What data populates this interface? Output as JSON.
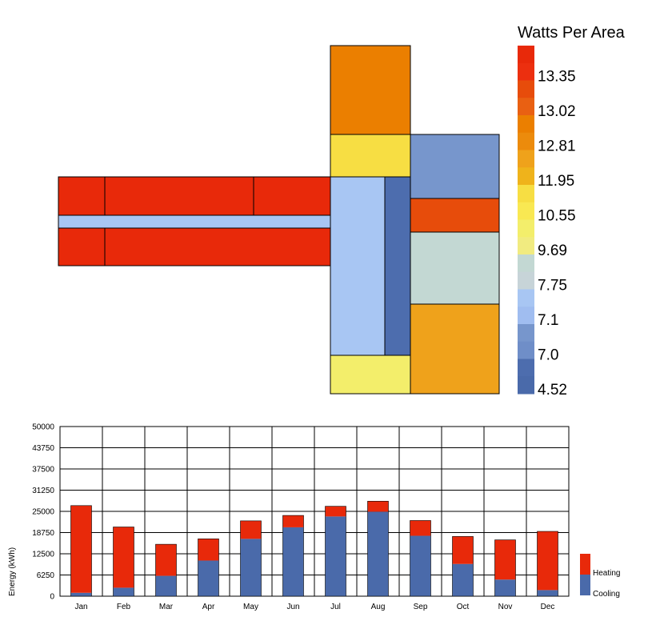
{
  "legend_map": {
    "title": "Watts Per Area",
    "bins": [
      {
        "label": "",
        "color": "#e8290a"
      },
      {
        "label": "13.35",
        "color": "#ec2f0f"
      },
      {
        "label": "",
        "color": "#e74c0b"
      },
      {
        "label": "13.02",
        "color": "#e96012"
      },
      {
        "label": "",
        "color": "#eb7f00"
      },
      {
        "label": "12.81",
        "color": "#ec8b0c"
      },
      {
        "label": "",
        "color": "#efa21b"
      },
      {
        "label": "11.95",
        "color": "#efb31b"
      },
      {
        "label": "",
        "color": "#f7de43"
      },
      {
        "label": "10.55",
        "color": "#f9e852"
      },
      {
        "label": "",
        "color": "#f3ee6b"
      },
      {
        "label": "9.69",
        "color": "#f1eb80"
      },
      {
        "label": "",
        "color": "#c3d8d3"
      },
      {
        "label": "7.75",
        "color": "#c7d4d8"
      },
      {
        "label": "",
        "color": "#a8c6f3"
      },
      {
        "label": "7.1",
        "color": "#a0bdf0"
      },
      {
        "label": "",
        "color": "#7796cc"
      },
      {
        "label": "7.0",
        "color": "#6f8ec8"
      },
      {
        "label": "",
        "color": "#4d6dae"
      },
      {
        "label": "4.52",
        "color": "#4a6aaa"
      }
    ]
  },
  "zones": [
    {
      "id": "west-1",
      "color": "#e8290a"
    },
    {
      "id": "west-2",
      "color": "#e8290a"
    },
    {
      "id": "west-3",
      "color": "#e8290a"
    },
    {
      "id": "west-corridor",
      "color": "#a8c6f3"
    },
    {
      "id": "west-4",
      "color": "#e8290a"
    },
    {
      "id": "west-5",
      "color": "#e8290a"
    },
    {
      "id": "north",
      "color": "#eb7f00"
    },
    {
      "id": "north-yellow",
      "color": "#f7de43"
    },
    {
      "id": "center-light",
      "color": "#a8c6f3"
    },
    {
      "id": "center-dark",
      "color": "#4d6dae"
    },
    {
      "id": "south-yellow",
      "color": "#f3ee6b"
    },
    {
      "id": "east-1",
      "color": "#7796cc"
    },
    {
      "id": "east-2",
      "color": "#e74c0b"
    },
    {
      "id": "east-3",
      "color": "#c3d8d3"
    },
    {
      "id": "east-4",
      "color": "#efa21b"
    }
  ],
  "chart_data": {
    "type": "bar",
    "stacked": true,
    "categories": [
      "Jan",
      "Feb",
      "Mar",
      "Apr",
      "May",
      "Jun",
      "Jul",
      "Aug",
      "Sep",
      "Oct",
      "Nov",
      "Dec"
    ],
    "series": [
      {
        "name": "Cooling",
        "color": "#4a6aaa",
        "values": [
          1000,
          2500,
          6000,
          10500,
          16900,
          20300,
          23500,
          24900,
          17800,
          9500,
          4900,
          1800
        ]
      },
      {
        "name": "Heating",
        "color": "#e8290a",
        "values": [
          25700,
          17900,
          9300,
          6400,
          5300,
          3500,
          3000,
          3100,
          4500,
          8100,
          11700,
          17300
        ]
      }
    ],
    "ylabel": "Energy (kWh)",
    "xlabel": "",
    "yticks": [
      "0",
      "6250",
      "12500",
      "18750",
      "25000",
      "31250",
      "37500",
      "43750",
      "50000"
    ],
    "ylim": [
      0,
      50000
    ],
    "grid": true,
    "legend_position": "right"
  }
}
